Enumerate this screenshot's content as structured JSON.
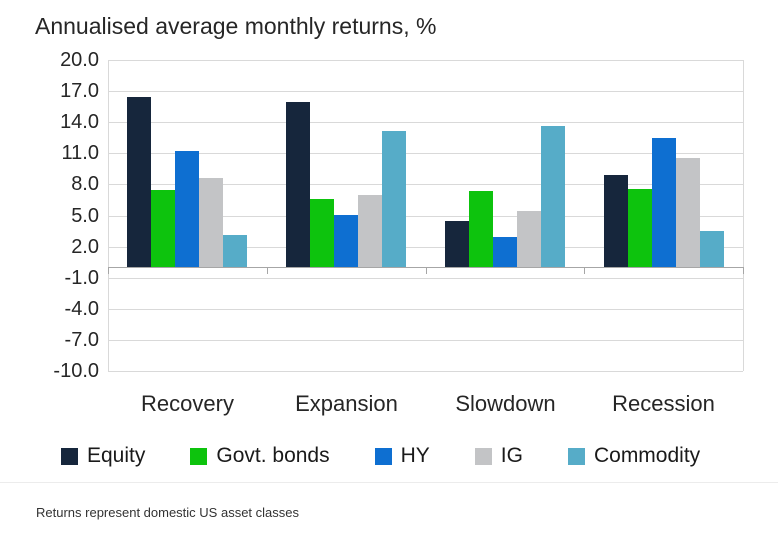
{
  "title": "Annualised average monthly returns, %",
  "footnote": "Returns represent domestic US asset classes",
  "colors": {
    "equity": "#16263c",
    "govt_bonds": "#0dc30d",
    "hy": "#0e6fd1",
    "ig": "#c3c4c6",
    "commodity": "#56acc8",
    "gridline": "#d9d9d9",
    "axis": "#a6a6a6",
    "text": "#262626"
  },
  "chart_data": {
    "type": "bar",
    "title": "Annualised average monthly returns, %",
    "xlabel": "",
    "ylabel": "",
    "categories": [
      "Recovery",
      "Expansion",
      "Slowdown",
      "Recession"
    ],
    "series": [
      {
        "name": "Equity",
        "color": "#16263c",
        "values": [
          16.4,
          15.9,
          4.4,
          8.9
        ]
      },
      {
        "name": "Govt. bonds",
        "color": "#0dc30d",
        "values": [
          7.4,
          6.6,
          7.3,
          7.5
        ]
      },
      {
        "name": "HY",
        "color": "#0e6fd1",
        "values": [
          11.2,
          5.0,
          2.9,
          12.4
        ]
      },
      {
        "name": "IG",
        "color": "#c3c4c6",
        "values": [
          8.6,
          6.9,
          5.4,
          10.5
        ]
      },
      {
        "name": "Commodity",
        "color": "#56acc8",
        "values": [
          3.1,
          13.1,
          13.6,
          3.5
        ]
      }
    ],
    "ylim": [
      -10,
      20
    ],
    "yticks": [
      20,
      17,
      14,
      11,
      8,
      5,
      2,
      -1,
      -4,
      -7,
      -10
    ],
    "ytick_labels": [
      "20.0",
      "17.0",
      "14.0",
      "11.0",
      "8.0",
      "5.0",
      "2.0",
      "-1.0",
      "-4.0",
      "-7.0",
      "-10.0"
    ],
    "grid": true,
    "legend_position": "bottom"
  }
}
